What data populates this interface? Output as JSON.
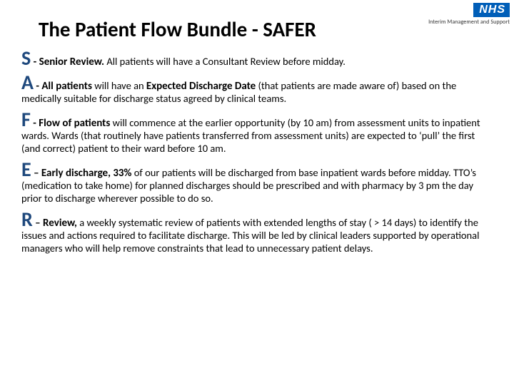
{
  "logo": {
    "text": "NHS",
    "bg_color": "#005EB8",
    "fg_color": "#ffffff",
    "subtext": "Interim Management and Support"
  },
  "title": "The Patient Flow Bundle - SAFER",
  "letter_color": "#1F497D",
  "items": {
    "s": {
      "letter": "S",
      "bold_lead": " - Senior Review.",
      "rest": " All patients will have a Consultant Review before midday."
    },
    "a": {
      "letter": "A",
      "bold_lead_1": " - All patients",
      "mid_1": " will have an ",
      "bold_lead_2": "Expected Discharge Date",
      "rest": " (that patients are made aware of) based on the medically suitable for discharge status agreed by clinical teams."
    },
    "f": {
      "letter": "F",
      "bold_lead": " - Flow of patients",
      "rest": " will commence at the earlier opportunity (by 10 am) from assessment units to inpatient wards. Wards (that routinely have patients transferred from assessment units) are expected to ‘pull’ the first (and correct) patient to their ward before 10 am."
    },
    "e": {
      "letter": "E",
      "bold_lead": " – Early discharge, 33%",
      "rest": " of our patients will be discharged from base inpatient wards before midday. TTO’s (medication to take home) for planned discharges should be prescribed and with pharmacy by 3 pm the day prior to discharge wherever possible to do so."
    },
    "r": {
      "letter": "R",
      "bold_lead": " – Review,",
      "rest": " a weekly systematic review of patients with extended lengths of stay ( > 14 days)  to identify the issues and actions required to facilitate discharge. This will be led by clinical leaders supported by operational managers who will help remove constraints that lead to unnecessary patient delays."
    }
  }
}
